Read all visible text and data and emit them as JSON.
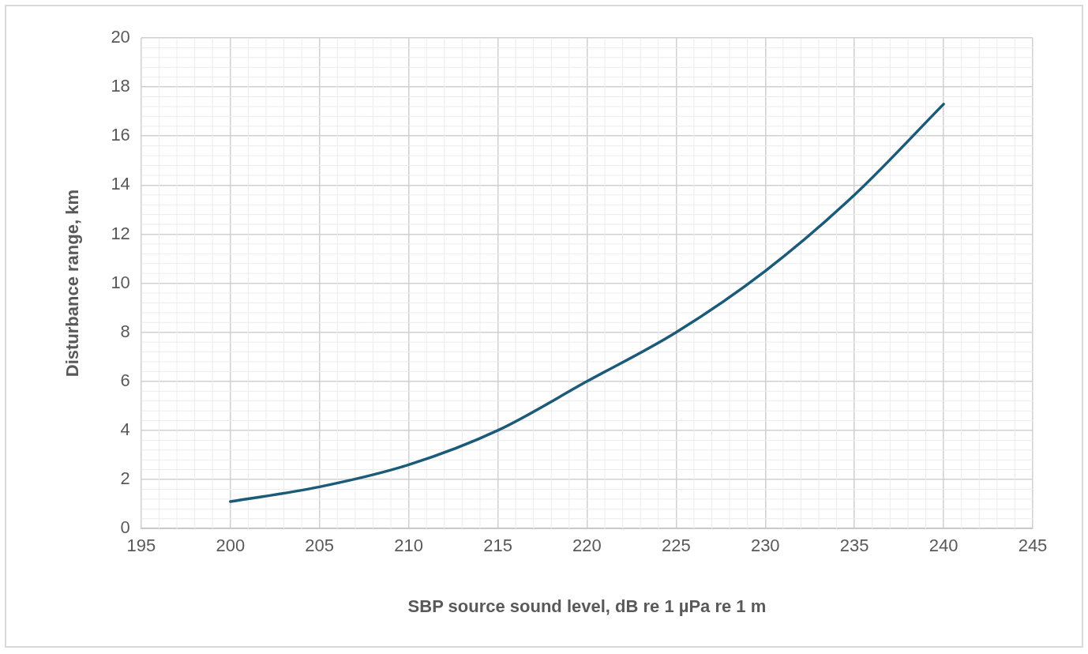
{
  "chart_data": {
    "type": "line",
    "xlabel": "SBP source sound level, dB re 1 µPa re 1 m",
    "ylabel": "Disturbance range, km",
    "x": [
      200,
      205,
      210,
      215,
      220,
      225,
      230,
      235,
      240
    ],
    "series": [
      {
        "color": "#1b5a78",
        "values": [
          1.1,
          1.7,
          2.6,
          4.0,
          6.0,
          8.0,
          10.5,
          13.6,
          17.3
        ]
      }
    ],
    "xlim": [
      195,
      245
    ],
    "xticks": [
      195,
      200,
      205,
      210,
      215,
      220,
      225,
      230,
      235,
      240,
      245
    ],
    "ylim": [
      0,
      20
    ],
    "yticks": [
      0,
      2,
      4,
      6,
      8,
      10,
      12,
      14,
      16,
      18,
      20
    ],
    "grid": true,
    "legend": false,
    "marker": "none",
    "line_style": "solid"
  }
}
